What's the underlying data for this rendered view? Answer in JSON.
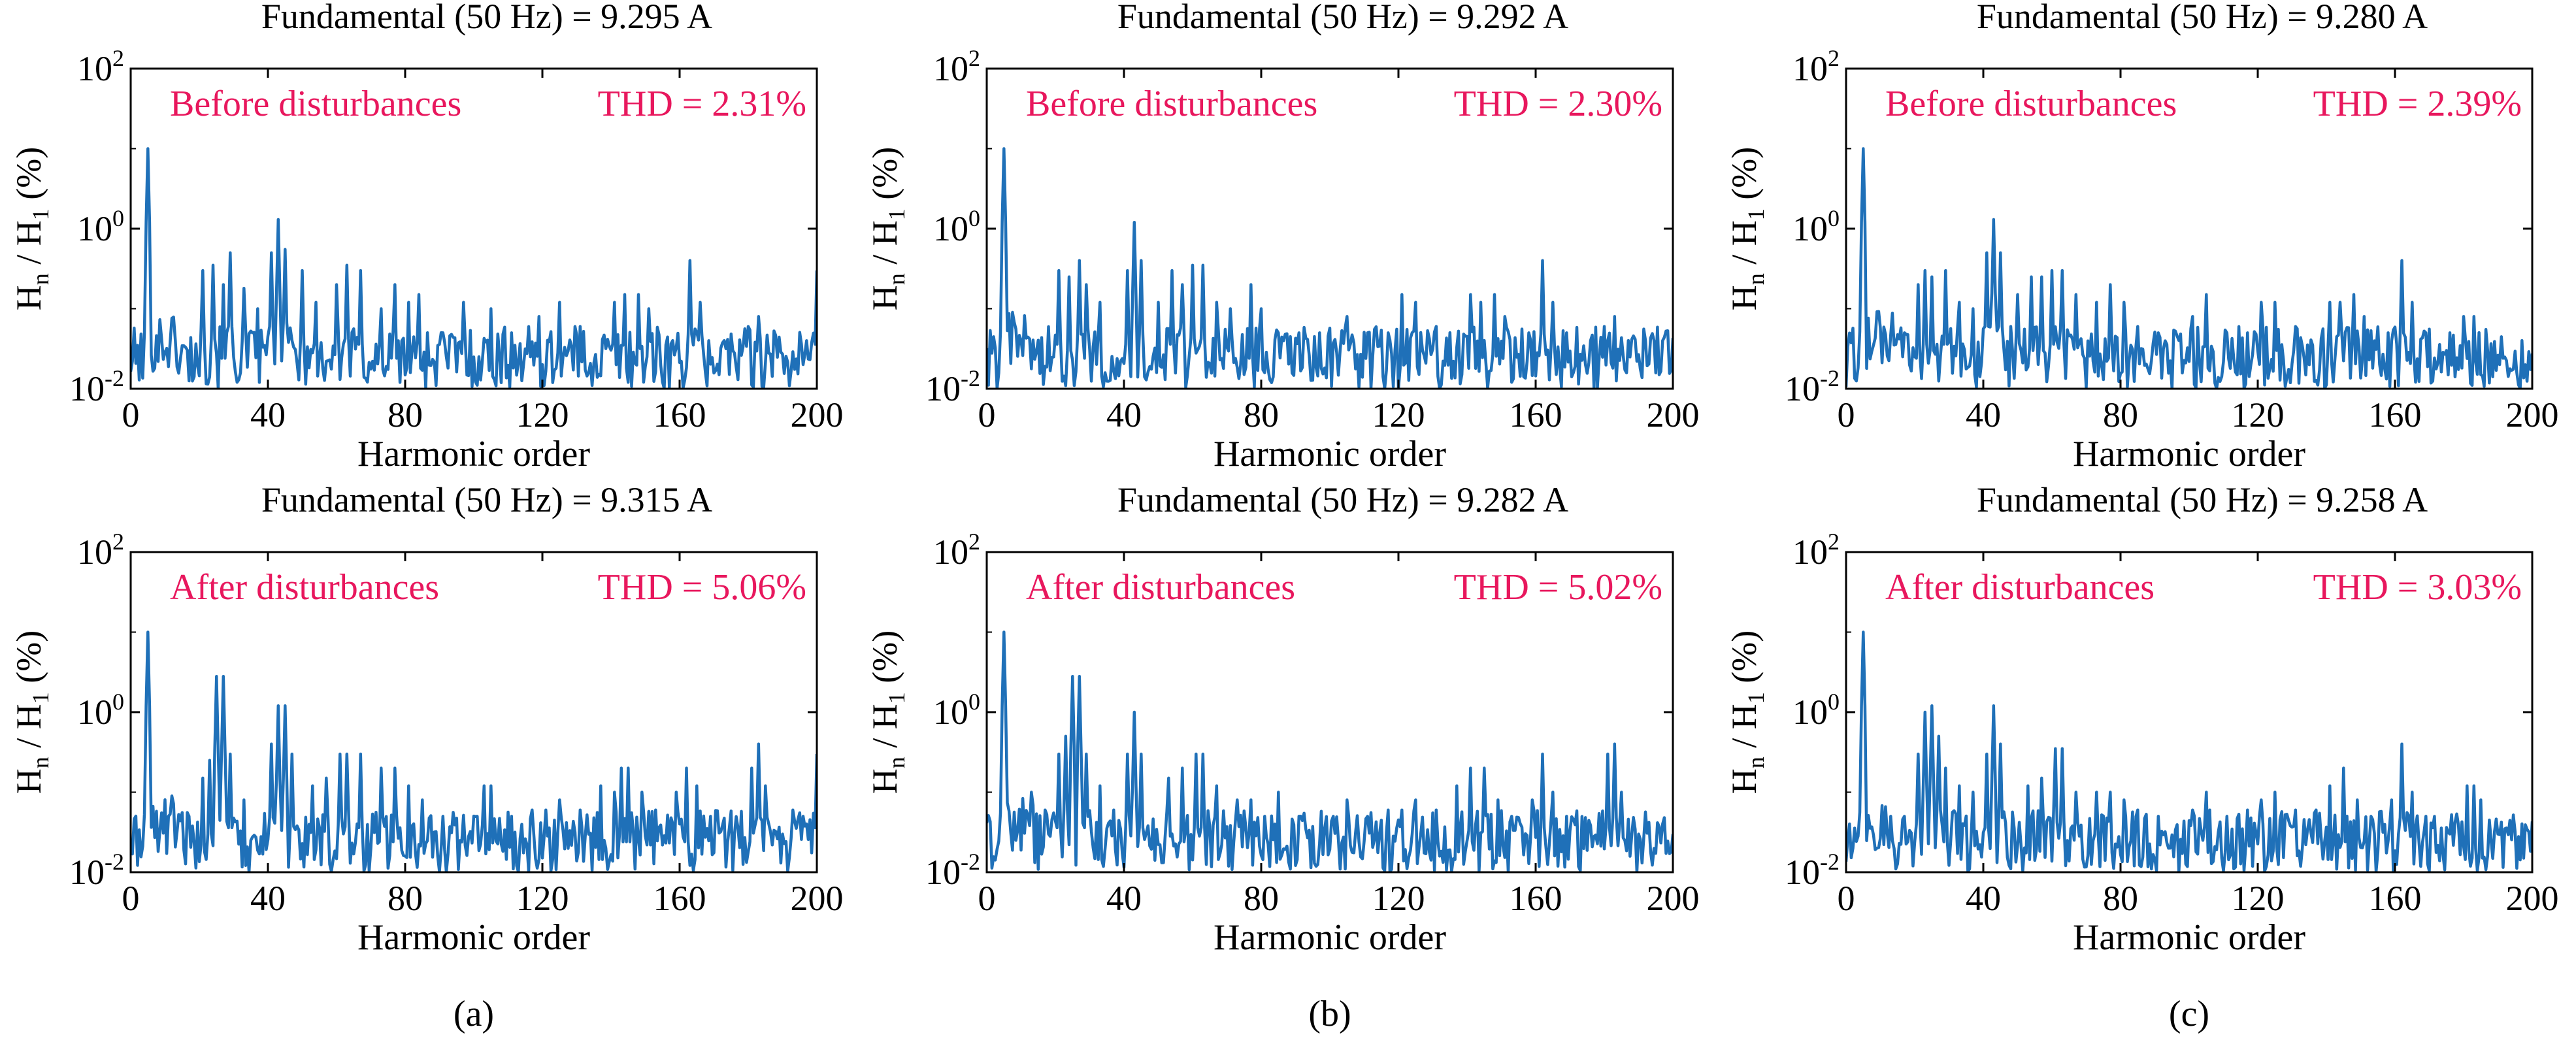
{
  "labels": {
    "y_axis": "Hn / H1 (%)",
    "x_axis": "Harmonic order"
  },
  "colors": {
    "line": "#1f70b8",
    "annotation": "#e8175d",
    "text": "#000000"
  },
  "sublabels": [
    "(a)",
    "(b)",
    "(c)"
  ],
  "chart_data": [
    {
      "type": "line",
      "yscale": "log",
      "title": "Fundamental (50 Hz) = 9.295 A",
      "state": "Before disturbances",
      "thd": "THD = 2.31%",
      "xlabel": "Harmonic order",
      "ylabel": "Hn / H1 (%)",
      "xlim": [
        0,
        200
      ],
      "ylim": [
        0.01,
        100
      ],
      "xticks": [
        "0",
        "40",
        "80",
        "120",
        "160",
        "200"
      ],
      "yticks": [
        "10-2",
        "100",
        "102"
      ],
      "peaks": [
        [
          5,
          10
        ],
        [
          21,
          0.3
        ],
        [
          24,
          0.35
        ],
        [
          27,
          0.2
        ],
        [
          29,
          0.5
        ],
        [
          33,
          0.18
        ],
        [
          37,
          0.1
        ],
        [
          41,
          0.5
        ],
        [
          43,
          1.3
        ],
        [
          45,
          0.55
        ],
        [
          50,
          0.3
        ],
        [
          54,
          0.12
        ],
        [
          60,
          0.2
        ],
        [
          63,
          0.35
        ],
        [
          67,
          0.3
        ],
        [
          73,
          0.1
        ],
        [
          77,
          0.2
        ],
        [
          81,
          0.12
        ],
        [
          84,
          0.15
        ],
        [
          91,
          0.05
        ],
        [
          97,
          0.12
        ],
        [
          105,
          0.1
        ],
        [
          111,
          0.05
        ],
        [
          119,
          0.08
        ],
        [
          125,
          0.12
        ],
        [
          131,
          0.06
        ],
        [
          141,
          0.12
        ],
        [
          144,
          0.15
        ],
        [
          148,
          0.15
        ],
        [
          151,
          0.1
        ],
        [
          158,
          0.04
        ],
        [
          163,
          0.4
        ],
        [
          166,
          0.12
        ],
        [
          173,
          0.04
        ],
        [
          180,
          0.06
        ],
        [
          183,
          0.08
        ],
        [
          188,
          0.04
        ],
        [
          199,
          0.02
        ],
        [
          200,
          0.3
        ]
      ]
    },
    {
      "type": "line",
      "yscale": "log",
      "title": "Fundamental (50 Hz) = 9.292 A",
      "state": "Before disturbances",
      "thd": "THD = 2.30%",
      "xlabel": "Harmonic order",
      "ylabel": "Hn / H1 (%)",
      "xlim": [
        0,
        200
      ],
      "ylim": [
        0.01,
        100
      ],
      "xticks": [
        "0",
        "40",
        "80",
        "120",
        "160",
        "200"
      ],
      "yticks": [
        "10-2",
        "100",
        "102"
      ],
      "peaks": [
        [
          5,
          10
        ],
        [
          21,
          0.3
        ],
        [
          24,
          0.25
        ],
        [
          27,
          0.4
        ],
        [
          29,
          0.2
        ],
        [
          33,
          0.12
        ],
        [
          41,
          0.3
        ],
        [
          43,
          1.2
        ],
        [
          45,
          0.4
        ],
        [
          50,
          0.12
        ],
        [
          54,
          0.3
        ],
        [
          57,
          0.2
        ],
        [
          60,
          0.35
        ],
        [
          63,
          0.35
        ],
        [
          67,
          0.12
        ],
        [
          71,
          0.1
        ],
        [
          77,
          0.2
        ],
        [
          80,
          0.1
        ],
        [
          85,
          0.05
        ],
        [
          91,
          0.05
        ],
        [
          97,
          0.05
        ],
        [
          105,
          0.08
        ],
        [
          111,
          0.05
        ],
        [
          117,
          0.05
        ],
        [
          121,
          0.15
        ],
        [
          125,
          0.12
        ],
        [
          131,
          0.06
        ],
        [
          141,
          0.15
        ],
        [
          144,
          0.12
        ],
        [
          148,
          0.15
        ],
        [
          151,
          0.08
        ],
        [
          158,
          0.05
        ],
        [
          162,
          0.4
        ],
        [
          165,
          0.12
        ],
        [
          169,
          0.05
        ],
        [
          176,
          0.04
        ],
        [
          180,
          0.06
        ],
        [
          183,
          0.08
        ],
        [
          187,
          0.04
        ],
        [
          200,
          0.03
        ]
      ]
    },
    {
      "type": "line",
      "yscale": "log",
      "title": "Fundamental (50 Hz) = 9.280 A",
      "state": "Before disturbances",
      "thd": "THD = 2.39%",
      "xlabel": "Harmonic order",
      "ylabel": "Hn / H1 (%)",
      "xlim": [
        0,
        200
      ],
      "ylim": [
        0.01,
        100
      ],
      "xticks": [
        "0",
        "40",
        "80",
        "120",
        "160",
        "200"
      ],
      "yticks": [
        "10-2",
        "100",
        "102"
      ],
      "peaks": [
        [
          5,
          10
        ],
        [
          17,
          0.05
        ],
        [
          21,
          0.2
        ],
        [
          23,
          0.3
        ],
        [
          25,
          0.25
        ],
        [
          29,
          0.3
        ],
        [
          33,
          0.12
        ],
        [
          37,
          0.1
        ],
        [
          41,
          0.5
        ],
        [
          43,
          1.3
        ],
        [
          45,
          0.5
        ],
        [
          50,
          0.15
        ],
        [
          54,
          0.25
        ],
        [
          57,
          0.25
        ],
        [
          60,
          0.3
        ],
        [
          63,
          0.3
        ],
        [
          67,
          0.15
        ],
        [
          73,
          0.12
        ],
        [
          77,
          0.2
        ],
        [
          81,
          0.12
        ],
        [
          85,
          0.06
        ],
        [
          91,
          0.05
        ],
        [
          97,
          0.04
        ],
        [
          101,
          0.08
        ],
        [
          105,
          0.15
        ],
        [
          111,
          0.05
        ],
        [
          117,
          0.05
        ],
        [
          121,
          0.12
        ],
        [
          125,
          0.12
        ],
        [
          131,
          0.06
        ],
        [
          141,
          0.12
        ],
        [
          144,
          0.12
        ],
        [
          148,
          0.15
        ],
        [
          151,
          0.08
        ],
        [
          158,
          0.05
        ],
        [
          162,
          0.4
        ],
        [
          165,
          0.12
        ],
        [
          169,
          0.05
        ],
        [
          176,
          0.05
        ],
        [
          180,
          0.08
        ],
        [
          183,
          0.08
        ],
        [
          187,
          0.03
        ]
      ]
    },
    {
      "type": "line",
      "yscale": "log",
      "title": "Fundamental (50 Hz) = 9.315 A",
      "state": "After disturbances",
      "thd": "THD = 5.06%",
      "xlabel": "Harmonic order",
      "ylabel": "Hn / H1 (%)",
      "xlim": [
        0,
        200
      ],
      "ylim": [
        0.01,
        100
      ],
      "xticks": [
        "0",
        "40",
        "80",
        "120",
        "160",
        "200"
      ],
      "yticks": [
        "10-2",
        "100",
        "102"
      ],
      "peaks": [
        [
          5,
          10
        ],
        [
          11,
          0.05
        ],
        [
          17,
          0.05
        ],
        [
          21,
          0.15
        ],
        [
          23,
          0.25
        ],
        [
          25,
          2.8
        ],
        [
          27,
          2.8
        ],
        [
          29,
          0.3
        ],
        [
          33,
          0.08
        ],
        [
          41,
          0.4
        ],
        [
          43,
          1.2
        ],
        [
          45,
          1.2
        ],
        [
          47,
          0.3
        ],
        [
          53,
          0.12
        ],
        [
          57,
          0.15
        ],
        [
          61,
          0.3
        ],
        [
          63,
          0.3
        ],
        [
          67,
          0.3
        ],
        [
          73,
          0.2
        ],
        [
          77,
          0.2
        ],
        [
          81,
          0.12
        ],
        [
          85,
          0.08
        ],
        [
          91,
          0.05
        ],
        [
          101,
          0.05
        ],
        [
          103,
          0.12
        ],
        [
          105,
          0.12
        ],
        [
          111,
          0.05
        ],
        [
          117,
          0.06
        ],
        [
          121,
          0.06
        ],
        [
          125,
          0.08
        ],
        [
          131,
          0.06
        ],
        [
          137,
          0.12
        ],
        [
          141,
          0.1
        ],
        [
          143,
          0.2
        ],
        [
          145,
          0.2
        ],
        [
          149,
          0.1
        ],
        [
          153,
          0.06
        ],
        [
          159,
          0.1
        ],
        [
          162,
          0.2
        ],
        [
          165,
          0.12
        ],
        [
          169,
          0.05
        ],
        [
          176,
          0.03
        ],
        [
          181,
          0.2
        ],
        [
          183,
          0.4
        ],
        [
          185,
          0.12
        ],
        [
          190,
          0.03
        ],
        [
          199,
          0.03
        ],
        [
          200,
          0.3
        ]
      ]
    },
    {
      "type": "line",
      "yscale": "log",
      "title": "Fundamental (50 Hz) = 9.282 A",
      "state": "After disturbances",
      "thd": "THD = 5.02%",
      "xlabel": "Harmonic order",
      "ylabel": "Hn / H1 (%)",
      "xlim": [
        0,
        200
      ],
      "ylim": [
        0.01,
        100
      ],
      "xticks": [
        "0",
        "40",
        "80",
        "120",
        "160",
        "200"
      ],
      "yticks": [
        "10-2",
        "100",
        "102"
      ],
      "peaks": [
        [
          5,
          10
        ],
        [
          13,
          0.1
        ],
        [
          17,
          0.06
        ],
        [
          21,
          0.3
        ],
        [
          23,
          0.5
        ],
        [
          25,
          2.8
        ],
        [
          27,
          2.8
        ],
        [
          29,
          0.3
        ],
        [
          33,
          0.12
        ],
        [
          37,
          0.06
        ],
        [
          41,
          0.3
        ],
        [
          43,
          1.0
        ],
        [
          45,
          0.3
        ],
        [
          53,
          0.15
        ],
        [
          57,
          0.2
        ],
        [
          61,
          0.3
        ],
        [
          63,
          0.3
        ],
        [
          67,
          0.12
        ],
        [
          73,
          0.08
        ],
        [
          77,
          0.08
        ],
        [
          81,
          0.05
        ],
        [
          85,
          0.1
        ],
        [
          91,
          0.05
        ],
        [
          101,
          0.05
        ],
        [
          105,
          0.08
        ],
        [
          111,
          0.05
        ],
        [
          117,
          0.06
        ],
        [
          121,
          0.06
        ],
        [
          125,
          0.08
        ],
        [
          131,
          0.06
        ],
        [
          137,
          0.12
        ],
        [
          141,
          0.2
        ],
        [
          145,
          0.2
        ],
        [
          149,
          0.08
        ],
        [
          153,
          0.05
        ],
        [
          159,
          0.08
        ],
        [
          162,
          0.3
        ],
        [
          165,
          0.1
        ],
        [
          169,
          0.05
        ],
        [
          176,
          0.03
        ],
        [
          181,
          0.3
        ],
        [
          183,
          0.4
        ],
        [
          185,
          0.1
        ],
        [
          190,
          0.03
        ],
        [
          200,
          0.03
        ]
      ]
    },
    {
      "type": "line",
      "yscale": "log",
      "title": "Fundamental (50 Hz) = 9.258 A",
      "state": "After disturbances",
      "thd": "THD = 3.03%",
      "xlabel": "Harmonic order",
      "ylabel": "Hn / H1 (%)",
      "xlim": [
        0,
        200
      ],
      "ylim": [
        0.01,
        100
      ],
      "xticks": [
        "0",
        "40",
        "80",
        "120",
        "160",
        "200"
      ],
      "yticks": [
        "10-2",
        "100",
        "102"
      ],
      "peaks": [
        [
          5,
          10
        ],
        [
          13,
          0.05
        ],
        [
          17,
          0.05
        ],
        [
          21,
          0.3
        ],
        [
          23,
          1.0
        ],
        [
          25,
          1.2
        ],
        [
          27,
          0.5
        ],
        [
          29,
          0.2
        ],
        [
          33,
          0.12
        ],
        [
          37,
          0.1
        ],
        [
          41,
          0.3
        ],
        [
          43,
          1.2
        ],
        [
          45,
          0.4
        ],
        [
          53,
          0.12
        ],
        [
          57,
          0.15
        ],
        [
          61,
          0.35
        ],
        [
          63,
          0.35
        ],
        [
          67,
          0.1
        ],
        [
          73,
          0.1
        ],
        [
          77,
          0.1
        ],
        [
          81,
          0.08
        ],
        [
          85,
          0.06
        ],
        [
          91,
          0.05
        ],
        [
          101,
          0.06
        ],
        [
          105,
          0.1
        ],
        [
          111,
          0.05
        ],
        [
          117,
          0.06
        ],
        [
          121,
          0.08
        ],
        [
          125,
          0.1
        ],
        [
          131,
          0.06
        ],
        [
          137,
          0.06
        ],
        [
          141,
          0.12
        ],
        [
          145,
          0.2
        ],
        [
          149,
          0.08
        ],
        [
          153,
          0.05
        ],
        [
          159,
          0.08
        ],
        [
          162,
          0.4
        ],
        [
          165,
          0.1
        ],
        [
          169,
          0.05
        ],
        [
          176,
          0.03
        ],
        [
          181,
          0.12
        ],
        [
          183,
          0.12
        ],
        [
          185,
          0.08
        ],
        [
          190,
          0.03
        ],
        [
          197,
          0.015
        ],
        [
          200,
          0.015
        ]
      ]
    }
  ]
}
